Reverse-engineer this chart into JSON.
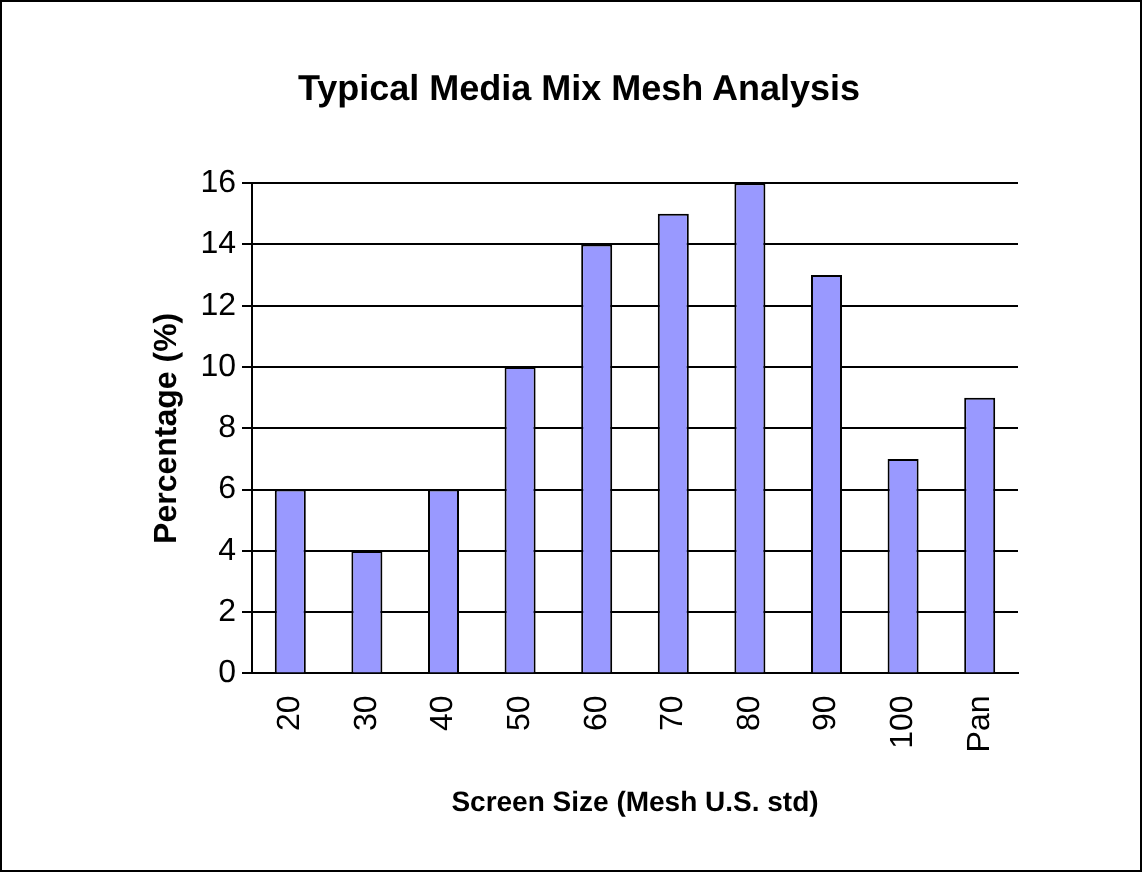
{
  "chart_data": {
    "type": "bar",
    "title": "Typical Media Mix Mesh Analysis",
    "xlabel": "Screen Size (Mesh U.S. std)",
    "ylabel": "Percentage (%)",
    "categories": [
      "20",
      "30",
      "40",
      "50",
      "60",
      "70",
      "80",
      "90",
      "100",
      "Pan"
    ],
    "values": [
      6,
      4,
      6,
      10,
      14,
      15,
      16,
      13,
      7,
      9
    ],
    "color": "#9999ff",
    "ylim": [
      0,
      16
    ],
    "yticks": [
      0,
      2,
      4,
      6,
      8,
      10,
      12,
      14,
      16
    ],
    "grid": "y",
    "legend": false
  }
}
